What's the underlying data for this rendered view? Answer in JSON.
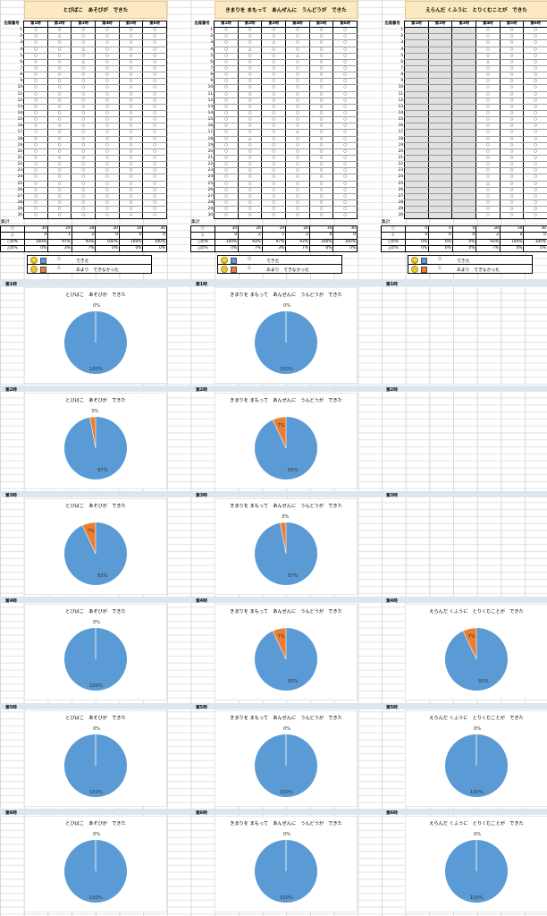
{
  "sheet": {
    "attend_label": "出席番号",
    "sum_label": "集計",
    "period_headers": [
      "第1時",
      "第2時",
      "第3時",
      "第4時",
      "第5時",
      "第6時"
    ],
    "symbols": {
      "circle": "○",
      "triangle": "△"
    },
    "panels": [
      {
        "title": "とびばこ　あそびが　できた",
        "grey_columns": [],
        "triangles": [
          [],
          [
            2
          ],
          [
            4,
            6
          ],
          [],
          [],
          []
        ],
        "summary": [
          {
            "key": "○",
            "values": [
              "30",
              "29",
              "28",
              "30",
              "30",
              "30"
            ]
          },
          {
            "key": "△",
            "values": [
              "0",
              "1",
              "2",
              "0",
              "0",
              "0"
            ]
          },
          {
            "key": "○の%",
            "values": [
              "100%",
              "97%",
              "93%",
              "100%",
              "100%",
              "100%"
            ]
          },
          {
            "key": "△の%",
            "values": [
              "0%",
              "3%",
              "7%",
              "0%",
              "0%",
              "0%"
            ]
          }
        ]
      },
      {
        "title": "きまりを まもって　あんぜんに　うんどうが　できた",
        "grey_columns": [],
        "triangles": [
          [],
          [
            4,
            18
          ],
          [
            3
          ],
          [
            5,
            17
          ],
          [],
          []
        ],
        "summary": [
          {
            "key": "○",
            "values": [
              "30",
              "28",
              "29",
              "28",
              "30",
              "30"
            ]
          },
          {
            "key": "△",
            "values": [
              "0",
              "2",
              "1",
              "2",
              "0",
              "0"
            ]
          },
          {
            "key": "○の%",
            "values": [
              "100%",
              "93%",
              "97%",
              "93%",
              "100%",
              "100%"
            ]
          },
          {
            "key": "△の%",
            "values": [
              "0%",
              "7%",
              "3%",
              "7%",
              "0%",
              "0%"
            ]
          }
        ]
      },
      {
        "title": "えらんだ くふうに　とりくむことが　できた",
        "grey_columns": [
          0,
          1,
          2
        ],
        "triangles": [
          [],
          [],
          [],
          [
            6,
            25
          ],
          [],
          []
        ],
        "summary": [
          {
            "key": "○",
            "values": [
              "0",
              "0",
              "0",
              "28",
              "30",
              "30"
            ]
          },
          {
            "key": "△",
            "values": [
              "0",
              "0",
              "0",
              "2",
              "0",
              "0"
            ]
          },
          {
            "key": "○の%",
            "values": [
              "0%",
              "0%",
              "0%",
              "93%",
              "100%",
              "100%"
            ]
          },
          {
            "key": "△の%",
            "values": [
              "0%",
              "0%",
              "0%",
              "7%",
              "0%",
              "0%"
            ]
          }
        ]
      }
    ],
    "legend": {
      "row1_text": "できた",
      "row2_text": "あまり　できなかった",
      "colors": {
        "done": "#5b9bd5",
        "not_done": "#ed7d31"
      }
    }
  },
  "charts": {
    "period_labels": [
      "第1時",
      "第2時",
      "第3時",
      "第4時",
      "第5時",
      "第6時"
    ],
    "rows": [
      [
        {
          "title": "とびばこ　あそびが　できた",
          "done_pct": 100,
          "not_pct": 0,
          "labels": [
            "0%",
            "100%"
          ]
        },
        {
          "title": "きまりを まもって　あんぜんに　うんどうが　できた",
          "done_pct": 100,
          "not_pct": 0,
          "labels": [
            "0%",
            "100%"
          ]
        },
        null
      ],
      [
        {
          "title": "とびばこ　あそびが　できた",
          "done_pct": 97,
          "not_pct": 3,
          "labels": [
            "3%",
            "97%"
          ]
        },
        {
          "title": "きまりを まもって　あんぜんに　うんどうが　できた",
          "done_pct": 93,
          "not_pct": 7,
          "labels": [
            "7%",
            "93%"
          ]
        },
        null
      ],
      [
        {
          "title": "とびばこ　あそびが　できた",
          "done_pct": 93,
          "not_pct": 7,
          "labels": [
            "7%",
            "93%"
          ]
        },
        {
          "title": "きまりを まもって　あんぜんに　うんどうが　できた",
          "done_pct": 97,
          "not_pct": 3,
          "labels": [
            "3%",
            "97%"
          ]
        },
        null
      ],
      [
        {
          "title": "とびばこ　あそびが　できた",
          "done_pct": 100,
          "not_pct": 0,
          "labels": [
            "0%",
            "100%"
          ]
        },
        {
          "title": "きまりを まもって　あんぜんに　うんどうが　できた",
          "done_pct": 93,
          "not_pct": 7,
          "labels": [
            "7%",
            "93%"
          ]
        },
        {
          "title": "えらんだ くふうに　とりくむことが　できた",
          "done_pct": 93,
          "not_pct": 7,
          "labels": [
            "7%",
            "93%"
          ]
        }
      ],
      [
        {
          "title": "とびばこ　あそびが　できた",
          "done_pct": 100,
          "not_pct": 0,
          "labels": [
            "0%",
            "100%"
          ]
        },
        {
          "title": "きまりを まもって　あんぜんに　うんどうが　できた",
          "done_pct": 100,
          "not_pct": 0,
          "labels": [
            "0%",
            "100%"
          ]
        },
        {
          "title": "えらんだ くふうに　とりくむことが　できた",
          "done_pct": 100,
          "not_pct": 0,
          "labels": [
            "0%",
            "100%"
          ]
        }
      ],
      [
        {
          "title": "とびばこ　あそびが　できた",
          "done_pct": 100,
          "not_pct": 0,
          "labels": [
            "0%",
            "100%"
          ]
        },
        {
          "title": "きまりを まもって　あんぜんに　うんどうが　できた",
          "done_pct": 100,
          "not_pct": 0,
          "labels": [
            "0%",
            "100%"
          ]
        },
        {
          "title": "えらんだ くふうに　とりくむことが　できた",
          "done_pct": 100,
          "not_pct": 0,
          "labels": [
            "0%",
            "100%"
          ]
        }
      ]
    ]
  },
  "chart_data": [
    {
      "type": "pie",
      "title": "とびばこ　あそびが　できた",
      "period": "第1時",
      "values": [
        100,
        0
      ]
    },
    {
      "type": "pie",
      "title": "とびばこ　あそびが　できた",
      "period": "第2時",
      "values": [
        97,
        3
      ]
    },
    {
      "type": "pie",
      "title": "とびばこ　あそびが　できた",
      "period": "第3時",
      "values": [
        93,
        7
      ]
    },
    {
      "type": "pie",
      "title": "とびばこ　あそびが　できた",
      "period": "第4時",
      "values": [
        100,
        0
      ]
    },
    {
      "type": "pie",
      "title": "とびばこ　あそびが　できた",
      "period": "第5時",
      "values": [
        100,
        0
      ]
    },
    {
      "type": "pie",
      "title": "とびばこ　あそびが　できた",
      "period": "第6時",
      "values": [
        100,
        0
      ]
    },
    {
      "type": "pie",
      "title": "きまりを まもって　あんぜんに　うんどうが　できた",
      "period": "第1時",
      "values": [
        100,
        0
      ]
    },
    {
      "type": "pie",
      "title": "きまりを まもって　あんぜんに　うんどうが　できた",
      "period": "第2時",
      "values": [
        93,
        7
      ]
    },
    {
      "type": "pie",
      "title": "きまりを まもって　あんぜんに　うんどうが　できた",
      "period": "第3時",
      "values": [
        97,
        3
      ]
    },
    {
      "type": "pie",
      "title": "きまりを まもって　あんぜんに　うんどうが　できた",
      "period": "第4時",
      "values": [
        93,
        7
      ]
    },
    {
      "type": "pie",
      "title": "きまりを まもって　あんぜんに　うんどうが　できた",
      "period": "第5時",
      "values": [
        100,
        0
      ]
    },
    {
      "type": "pie",
      "title": "きまりを まもって　あんぜんに　うんどうが　できた",
      "period": "第6時",
      "values": [
        100,
        0
      ]
    },
    {
      "type": "pie",
      "title": "えらんだ くふうに　とりくむことが　できた",
      "period": "第4時",
      "values": [
        93,
        7
      ]
    },
    {
      "type": "pie",
      "title": "えらんだ くふうに　とりくむことが　できた",
      "period": "第5時",
      "values": [
        100,
        0
      ]
    },
    {
      "type": "pie",
      "title": "えらんだ くふうに　とりくむことが　できた",
      "period": "第6時",
      "values": [
        100,
        0
      ]
    }
  ]
}
